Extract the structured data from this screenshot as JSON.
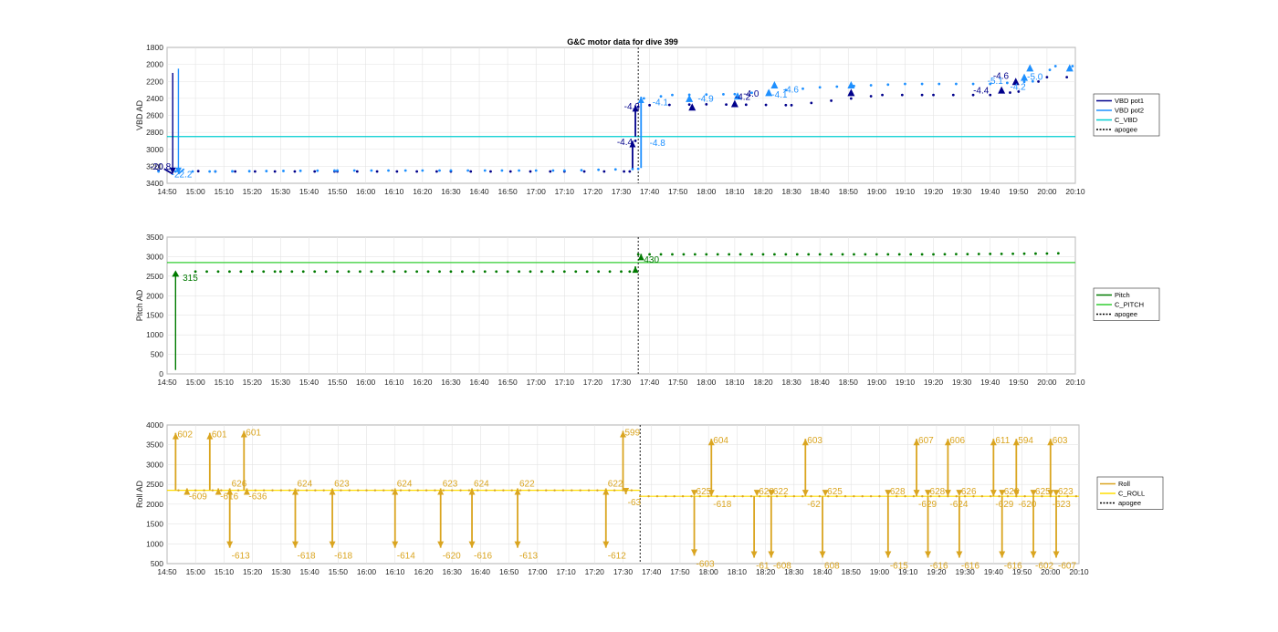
{
  "title": "G&C motor data for dive 399",
  "time_ticks": [
    "14:50",
    "15:00",
    "15:10",
    "15:20",
    "15:30",
    "15:40",
    "15:50",
    "16:00",
    "16:10",
    "16:20",
    "16:30",
    "16:40",
    "16:50",
    "17:00",
    "17:10",
    "17:20",
    "17:30",
    "17:40",
    "17:50",
    "18:00",
    "18:10",
    "18:20",
    "18:30",
    "18:40",
    "18:50",
    "19:00",
    "19:10",
    "19:20",
    "19:30",
    "19:40",
    "19:50",
    "20:00",
    "20:10"
  ],
  "colors": {
    "vbd_pot1": "#00008b",
    "vbd_pot2": "#1e90ff",
    "c_vbd": "#00ced1",
    "pitch": "#007a00",
    "c_pitch": "#32cd32",
    "roll": "#daa520",
    "c_roll": "#ffdd00",
    "apogee": "#000000"
  },
  "chart_data": [
    {
      "type": "line",
      "ylabel": "VBD AD",
      "ylim": [
        3400,
        1800
      ],
      "y_reversed": true,
      "yticks": [
        1800,
        2000,
        2200,
        2400,
        2600,
        2800,
        3000,
        3200,
        3400
      ],
      "xlim": [
        0,
        320
      ],
      "grid": true,
      "legend_position": "right",
      "legend": [
        "VBD pot1",
        "VBD pot2",
        "C_VBD",
        "apogee"
      ],
      "apogee_x": 166,
      "reference_line": 2850,
      "series": [
        {
          "name": "VBD pot1",
          "values": [
            [
              -3,
              3250
            ],
            [
              17,
              3260
            ],
            [
              60,
              3260
            ],
            [
              100,
              3260
            ],
            [
              140,
              3260
            ],
            [
              163,
              3260
            ],
            [
              165,
              2900
            ],
            [
              166,
              2500
            ],
            [
              170,
              2480
            ],
            [
              190,
              2470
            ],
            [
              220,
              2480
            ],
            [
              252,
              2360
            ],
            [
              270,
              2360
            ],
            [
              290,
              2360
            ],
            [
              300,
              2320
            ],
            [
              310,
              2150
            ],
            [
              318,
              2150
            ]
          ]
        },
        {
          "name": "VBD pot2",
          "values": [
            [
              -3,
              3260
            ],
            [
              17,
              3260
            ],
            [
              60,
              3250
            ],
            [
              100,
              3250
            ],
            [
              140,
              3250
            ],
            [
              166,
              3230
            ],
            [
              168,
              2400
            ],
            [
              178,
              2360
            ],
            [
              200,
              2350
            ],
            [
              230,
              2270
            ],
            [
              260,
              2230
            ],
            [
              290,
              2230
            ],
            [
              305,
              2200
            ],
            [
              313,
              2020
            ],
            [
              320,
              2020
            ]
          ]
        }
      ],
      "annotations": [
        {
          "x": -6,
          "y": 3240,
          "text": "-20.8",
          "series": "VBD pot1"
        },
        {
          "x": 1.5,
          "y": 3330,
          "text": "-22.2",
          "series": "VBD pot2"
        },
        {
          "x": 161,
          "y": 2530,
          "text": "-4.2",
          "series": "VBD pot1"
        },
        {
          "x": 158.5,
          "y": 2950,
          "text": "-4.4",
          "series": "VBD pot1"
        },
        {
          "x": 170,
          "y": 2960,
          "text": "-4.8",
          "series": "VBD pot2"
        },
        {
          "x": 171,
          "y": 2480,
          "text": "-4.1",
          "series": "VBD pot2"
        },
        {
          "x": 187,
          "y": 2440,
          "text": "-4.9",
          "series": "VBD pot2"
        },
        {
          "x": 203,
          "y": 2380,
          "text": "-4.0",
          "series": "VBD pot1"
        },
        {
          "x": 200,
          "y": 2420,
          "text": "-4.2",
          "series": "VBD pot1"
        },
        {
          "x": 217,
          "y": 2330,
          "text": "-4.6",
          "series": "VBD pot2"
        },
        {
          "x": 213,
          "y": 2390,
          "text": "-4.1",
          "series": "VBD pot2"
        },
        {
          "x": 284,
          "y": 2340,
          "text": "-4.4",
          "series": "VBD pot1"
        },
        {
          "x": 291,
          "y": 2170,
          "text": "-4.6",
          "series": "VBD pot1"
        },
        {
          "x": 289,
          "y": 2230,
          "text": "-5.1",
          "series": "VBD pot2"
        },
        {
          "x": 297,
          "y": 2300,
          "text": "-4.2",
          "series": "VBD pot2"
        },
        {
          "x": 303,
          "y": 2180,
          "text": "-5.0",
          "series": "VBD pot2"
        }
      ]
    },
    {
      "type": "line",
      "ylabel": "Pitch AD",
      "ylim": [
        0,
        3500
      ],
      "yticks": [
        0,
        500,
        1000,
        1500,
        2000,
        2500,
        3000,
        3500
      ],
      "xlim": [
        0,
        320
      ],
      "grid": true,
      "legend_position": "right",
      "legend": [
        "Pitch",
        "C_PITCH",
        "apogee"
      ],
      "apogee_x": 166,
      "reference_line": 2850,
      "series": [
        {
          "name": "Pitch",
          "values": [
            [
              3,
              100
            ],
            [
              3,
              2650
            ],
            [
              10,
              2620
            ],
            [
              40,
              2620
            ],
            [
              80,
              2620
            ],
            [
              120,
              2620
            ],
            [
              163,
              2620
            ],
            [
              166,
              3060
            ],
            [
              190,
              3060
            ],
            [
              230,
              3060
            ],
            [
              270,
              3060
            ],
            [
              310,
              3080
            ],
            [
              318,
              3090
            ]
          ]
        }
      ],
      "annotations": [
        {
          "x": 5.5,
          "y": 2380,
          "text": "315",
          "series": "Pitch"
        },
        {
          "x": 168,
          "y": 2850,
          "text": "430",
          "series": "Pitch"
        }
      ]
    },
    {
      "type": "line",
      "ylabel": "Roll AD",
      "ylim": [
        500,
        4000
      ],
      "yticks": [
        500,
        1000,
        1500,
        2000,
        2500,
        3000,
        3500,
        4000
      ],
      "xlim": [
        0,
        320
      ],
      "grid": true,
      "legend_position": "right",
      "legend": [
        "Roll",
        "C_ROLL",
        "apogee"
      ],
      "apogee_x": 166,
      "reference_line": 2350,
      "reference_line_after_apogee": 2200,
      "roll_excursions": [
        {
          "x": 3,
          "peak": 3800,
          "label": "602",
          "dir": "up"
        },
        {
          "x": 7,
          "peak": 2400,
          "label": "-609",
          "dir": "down"
        },
        {
          "x": 15,
          "peak": 3800,
          "label": "601",
          "dir": "up"
        },
        {
          "x": 18,
          "peak": 2400,
          "label": "-616",
          "dir": "down"
        },
        {
          "x": 22,
          "peak": 900,
          "label": "-613",
          "dir": "down"
        },
        {
          "x": 22,
          "peak": 2400,
          "label": "626",
          "dir": "up"
        },
        {
          "x": 27,
          "peak": 3850,
          "label": "601",
          "dir": "up"
        },
        {
          "x": 28,
          "peak": 2400,
          "label": "-636",
          "dir": "down"
        },
        {
          "x": 45,
          "peak": 900,
          "label": "-618",
          "dir": "down"
        },
        {
          "x": 45,
          "peak": 2400,
          "label": "624",
          "dir": "up"
        },
        {
          "x": 58,
          "peak": 900,
          "label": "-618",
          "dir": "down"
        },
        {
          "x": 58,
          "peak": 2400,
          "label": "623",
          "dir": "up"
        },
        {
          "x": 80,
          "peak": 900,
          "label": "-614",
          "dir": "down"
        },
        {
          "x": 80,
          "peak": 2400,
          "label": "624",
          "dir": "up"
        },
        {
          "x": 96,
          "peak": 900,
          "label": "-620",
          "dir": "down"
        },
        {
          "x": 96,
          "peak": 2400,
          "label": "623",
          "dir": "up"
        },
        {
          "x": 107,
          "peak": 900,
          "label": "-616",
          "dir": "down"
        },
        {
          "x": 107,
          "peak": 2400,
          "label": "624",
          "dir": "up"
        },
        {
          "x": 123,
          "peak": 900,
          "label": "-613",
          "dir": "down"
        },
        {
          "x": 123,
          "peak": 2400,
          "label": "622",
          "dir": "up"
        },
        {
          "x": 154,
          "peak": 900,
          "label": "-612",
          "dir": "down"
        },
        {
          "x": 154,
          "peak": 2400,
          "label": "622",
          "dir": "up"
        },
        {
          "x": 160,
          "peak": 3850,
          "label": "599",
          "dir": "up"
        },
        {
          "x": 161,
          "peak": 2250,
          "label": "-63",
          "dir": "down"
        },
        {
          "x": 185,
          "peak": 700,
          "label": "-603",
          "dir": "down"
        },
        {
          "x": 185,
          "peak": 2200,
          "label": "625",
          "dir": "up"
        },
        {
          "x": 191,
          "peak": 3650,
          "label": "604",
          "dir": "up"
        },
        {
          "x": 191,
          "peak": 2200,
          "label": "-618",
          "dir": "down"
        },
        {
          "x": 206,
          "peak": 650,
          "label": "-61",
          "dir": "down"
        },
        {
          "x": 207,
          "peak": 2200,
          "label": "628",
          "dir": "up"
        },
        {
          "x": 212,
          "peak": 650,
          "label": "-608",
          "dir": "down"
        },
        {
          "x": 212,
          "peak": 2200,
          "label": "622",
          "dir": "up"
        },
        {
          "x": 224,
          "peak": 3650,
          "label": "603",
          "dir": "up"
        },
        {
          "x": 224,
          "peak": 2200,
          "label": "-62",
          "dir": "down"
        },
        {
          "x": 230,
          "peak": 650,
          "label": "608",
          "dir": "down"
        },
        {
          "x": 231,
          "peak": 2200,
          "label": "625",
          "dir": "up"
        },
        {
          "x": 253,
          "peak": 650,
          "label": "-615",
          "dir": "down"
        },
        {
          "x": 253,
          "peak": 2200,
          "label": "628",
          "dir": "up"
        },
        {
          "x": 263,
          "peak": 3650,
          "label": "607",
          "dir": "up"
        },
        {
          "x": 263,
          "peak": 2200,
          "label": "-629",
          "dir": "down"
        },
        {
          "x": 267,
          "peak": 650,
          "label": "-616",
          "dir": "down"
        },
        {
          "x": 267,
          "peak": 2200,
          "label": "628",
          "dir": "up"
        },
        {
          "x": 274,
          "peak": 3650,
          "label": "606",
          "dir": "up"
        },
        {
          "x": 274,
          "peak": 2200,
          "label": "-624",
          "dir": "down"
        },
        {
          "x": 278,
          "peak": 650,
          "label": "-616",
          "dir": "down"
        },
        {
          "x": 278,
          "peak": 2200,
          "label": "626",
          "dir": "up"
        },
        {
          "x": 290,
          "peak": 3650,
          "label": "611",
          "dir": "up"
        },
        {
          "x": 290,
          "peak": 2200,
          "label": "-629",
          "dir": "down"
        },
        {
          "x": 293,
          "peak": 650,
          "label": "-616",
          "dir": "down"
        },
        {
          "x": 293,
          "peak": 2200,
          "label": "628",
          "dir": "up"
        },
        {
          "x": 298,
          "peak": 3650,
          "label": "594",
          "dir": "up"
        },
        {
          "x": 298,
          "peak": 2200,
          "label": "-620",
          "dir": "down"
        },
        {
          "x": 304,
          "peak": 650,
          "label": "-602",
          "dir": "down"
        },
        {
          "x": 304,
          "peak": 2200,
          "label": "625",
          "dir": "up"
        },
        {
          "x": 310,
          "peak": 3650,
          "label": "603",
          "dir": "up"
        },
        {
          "x": 310,
          "peak": 2200,
          "label": "-623",
          "dir": "down"
        },
        {
          "x": 312,
          "peak": 650,
          "label": "-607",
          "dir": "down"
        },
        {
          "x": 312,
          "peak": 2200,
          "label": "623",
          "dir": "up"
        }
      ]
    }
  ]
}
